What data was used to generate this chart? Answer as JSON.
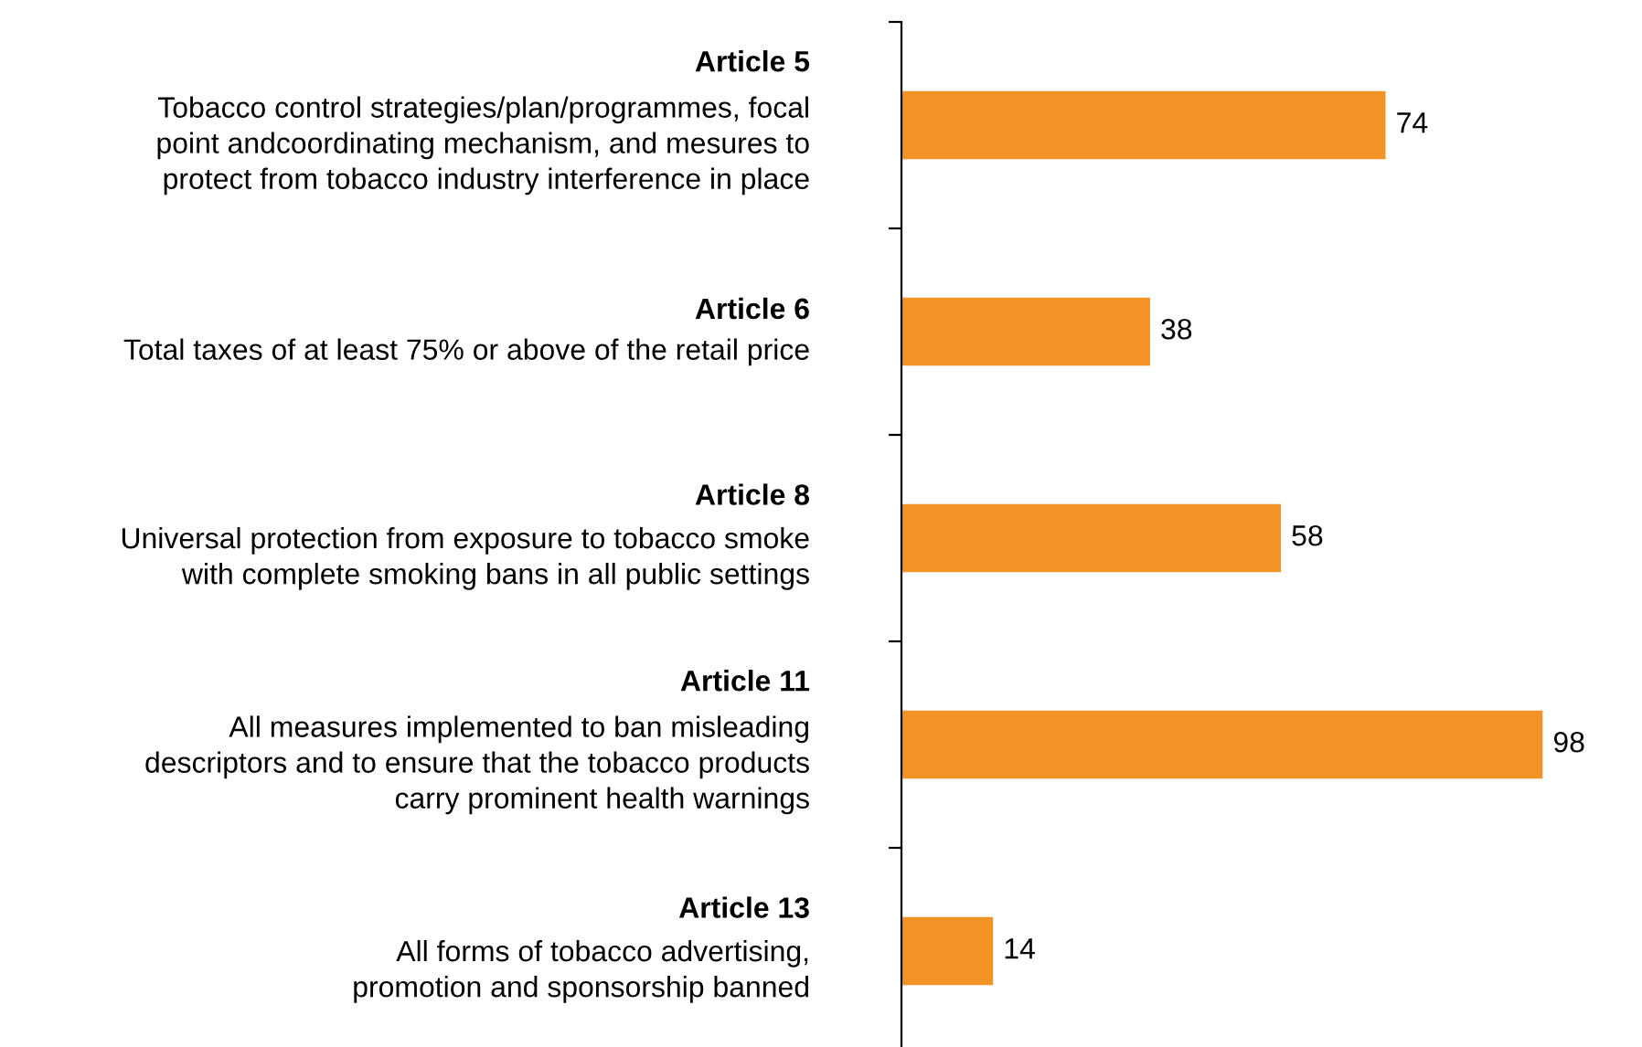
{
  "chart_data": {
    "type": "bar",
    "orientation": "horizontal",
    "categories": [
      "Article 5\nTobacco control strategies/plan/programmes, focal\npoint andcoordinating mechanism, and mesures to\nprotect from tobacco industry interference in place",
      "Article 6\nTotal taxes of at least 75% or above of the retail price",
      "Article 8\nUniversal protection from exposure to tobacco smoke\nwith complete smoking bans in all public settings",
      "Article 11\nAll measures implemented to ban misleading\ndescriptors and to ensure that the tobacco products\ncarry prominent health warnings",
      "Article 13\nAll forms of tobacco advertising,\npromotion and sponsorship banned"
    ],
    "values": [
      74,
      38,
      58,
      98,
      14
    ],
    "color": "#f39325",
    "data_labels": true,
    "grid": false,
    "legend": false
  }
}
